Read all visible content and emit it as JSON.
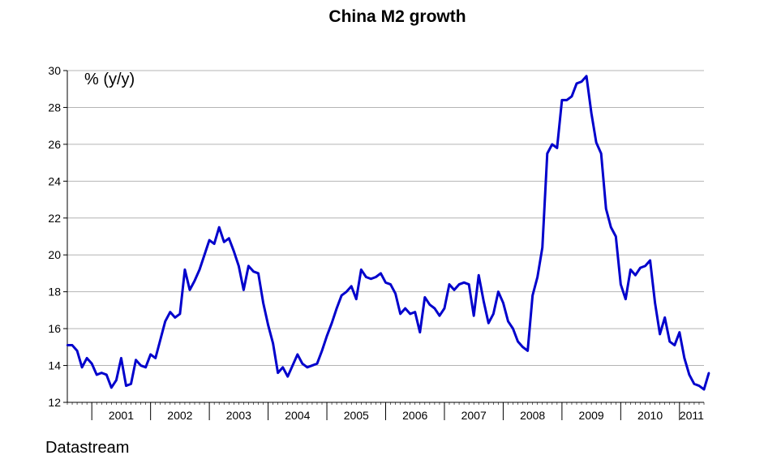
{
  "chart_data": {
    "type": "line",
    "title": "China M2 growth",
    "unit_label": "% (y/y)",
    "source": "Datastream",
    "xlabel": "",
    "ylabel": "",
    "ylim": [
      12,
      30
    ],
    "yticks": [
      "12",
      "14",
      "16",
      "18",
      "20",
      "22",
      "24",
      "26",
      "28",
      "30"
    ],
    "xlim": [
      "2000-08",
      "2011-06"
    ],
    "year_labels": [
      "2001",
      "2002",
      "2003",
      "2004",
      "2005",
      "2006",
      "2007",
      "2008",
      "2009",
      "2010",
      "2011"
    ],
    "grid": true,
    "legend": "none",
    "line_color": "#0000cc",
    "series": [
      {
        "name": "",
        "start": "2000-08",
        "frequency": "monthly",
        "values": [
          15.1,
          15.1,
          14.8,
          13.9,
          14.4,
          14.1,
          13.5,
          13.6,
          13.5,
          12.8,
          13.2,
          14.4,
          12.9,
          13.0,
          14.3,
          14.0,
          13.9,
          14.6,
          14.4,
          15.4,
          16.4,
          16.9,
          16.6,
          16.8,
          19.2,
          18.1,
          18.6,
          19.2,
          20.0,
          20.8,
          20.6,
          21.5,
          20.7,
          20.9,
          20.2,
          19.4,
          18.1,
          19.4,
          19.1,
          19.0,
          17.4,
          16.2,
          15.2,
          13.6,
          13.9,
          13.4,
          14.0,
          14.6,
          14.1,
          13.9,
          14.0,
          14.1,
          14.8,
          15.6,
          16.3,
          17.1,
          17.8,
          18.0,
          18.3,
          17.6,
          19.2,
          18.8,
          18.7,
          18.8,
          19.0,
          18.5,
          18.4,
          17.9,
          16.8,
          17.1,
          16.8,
          16.9,
          15.8,
          17.7,
          17.3,
          17.1,
          16.7,
          17.1,
          18.4,
          18.1,
          18.4,
          18.5,
          18.4,
          16.7,
          18.9,
          17.5,
          16.3,
          16.8,
          18.0,
          17.4,
          16.4,
          16.0,
          15.3,
          15.0,
          14.8,
          17.8,
          18.8,
          20.4,
          25.5,
          26.0,
          25.8,
          28.4,
          28.4,
          28.6,
          29.3,
          29.4,
          29.7,
          27.7,
          26.1,
          25.5,
          22.5,
          21.5,
          21.0,
          18.4,
          17.6,
          19.2,
          18.9,
          19.3,
          19.4,
          19.7,
          17.4,
          15.7,
          16.6,
          15.3,
          15.1,
          15.8,
          14.4,
          13.5,
          13.0,
          12.9,
          12.7,
          13.6
        ]
      }
    ]
  }
}
